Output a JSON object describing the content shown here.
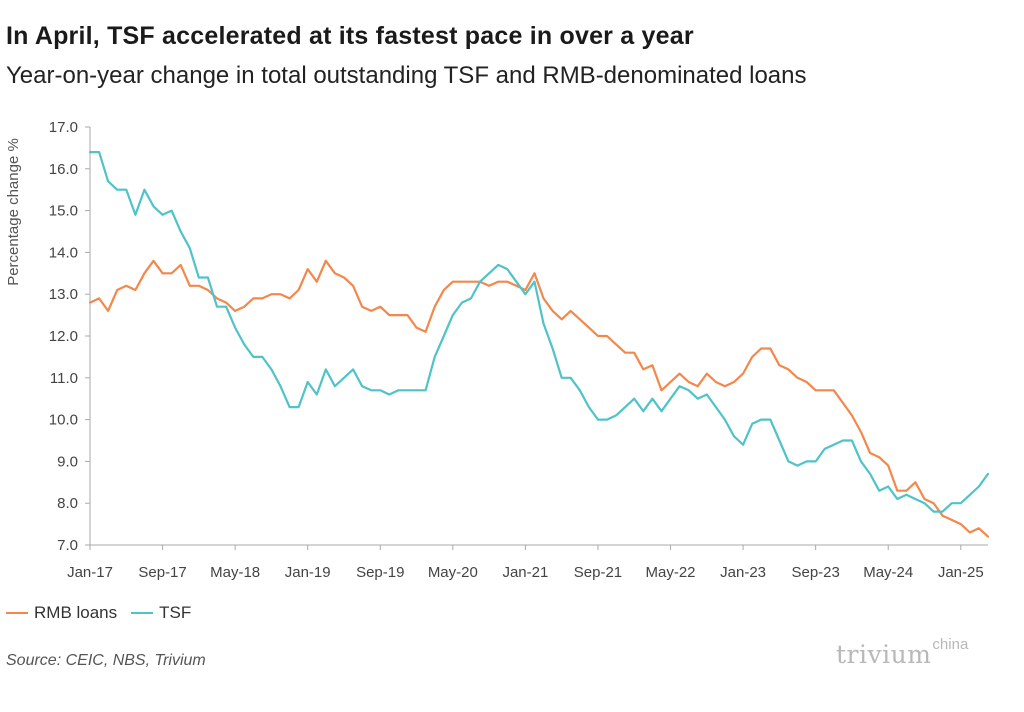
{
  "title": "In April, TSF accelerated at its fastest pace in over a year",
  "subtitle": "Year-on-year change in total outstanding TSF and RMB-denominated loans",
  "source": "Source: CEIC, NBS, Trivium",
  "brand": {
    "main": "trivium",
    "sup": "china"
  },
  "chart_data": {
    "type": "line",
    "ylabel": "Percentage change %",
    "xlabel": "",
    "ylim": [
      7.0,
      17.0
    ],
    "yticks": [
      "7.0",
      "8.0",
      "9.0",
      "10.0",
      "11.0",
      "12.0",
      "13.0",
      "14.0",
      "15.0",
      "16.0",
      "17.0"
    ],
    "xticks": [
      "Jan-17",
      "Sep-17",
      "May-18",
      "Jan-19",
      "Sep-19",
      "May-20",
      "Jan-21",
      "Sep-21",
      "May-22",
      "Jan-23",
      "Sep-23",
      "May-24",
      "Jan-25"
    ],
    "x_start": "Jan-17",
    "x_end": "Apr-25",
    "grid": false,
    "legend": "bottom-left",
    "series": [
      {
        "name": "RMB loans",
        "color": "#f4874b",
        "values": [
          12.8,
          12.9,
          12.6,
          13.1,
          13.2,
          13.1,
          13.5,
          13.8,
          13.5,
          13.5,
          13.7,
          13.2,
          13.2,
          13.1,
          12.9,
          12.8,
          12.6,
          12.7,
          12.9,
          12.9,
          13.0,
          13.0,
          12.9,
          13.1,
          13.6,
          13.3,
          13.8,
          13.5,
          13.4,
          13.2,
          12.7,
          12.6,
          12.7,
          12.5,
          12.5,
          12.5,
          12.2,
          12.1,
          12.7,
          13.1,
          13.3,
          13.3,
          13.3,
          13.3,
          13.2,
          13.3,
          13.3,
          13.2,
          13.1,
          13.5,
          12.9,
          12.6,
          12.4,
          12.6,
          12.4,
          12.2,
          12.0,
          12.0,
          11.8,
          11.6,
          11.6,
          11.2,
          11.3,
          10.7,
          10.9,
          11.1,
          10.9,
          10.8,
          11.1,
          10.9,
          10.8,
          10.9,
          11.1,
          11.5,
          11.7,
          11.7,
          11.3,
          11.2,
          11.0,
          10.9,
          10.7,
          10.7,
          10.7,
          10.4,
          10.1,
          9.7,
          9.2,
          9.1,
          8.9,
          8.3,
          8.3,
          8.5,
          8.1,
          8.0,
          7.7,
          7.6,
          7.5,
          7.3,
          7.4,
          7.2
        ]
      },
      {
        "name": "TSF",
        "color": "#4fc3c7",
        "values": [
          16.4,
          16.4,
          15.7,
          15.5,
          15.5,
          14.9,
          15.5,
          15.1,
          14.9,
          15.0,
          14.5,
          14.1,
          13.4,
          13.4,
          12.7,
          12.7,
          12.2,
          11.8,
          11.5,
          11.5,
          11.2,
          10.8,
          10.3,
          10.3,
          10.9,
          10.6,
          11.2,
          10.8,
          11.0,
          11.2,
          10.8,
          10.7,
          10.7,
          10.6,
          10.7,
          10.7,
          10.7,
          10.7,
          11.5,
          12.0,
          12.5,
          12.8,
          12.9,
          13.3,
          13.5,
          13.7,
          13.6,
          13.3,
          13.0,
          13.3,
          12.3,
          11.7,
          11.0,
          11.0,
          10.7,
          10.3,
          10.0,
          10.0,
          10.1,
          10.3,
          10.5,
          10.2,
          10.5,
          10.2,
          10.5,
          10.8,
          10.7,
          10.5,
          10.6,
          10.3,
          10.0,
          9.6,
          9.4,
          9.9,
          10.0,
          10.0,
          9.5,
          9.0,
          8.9,
          9.0,
          9.0,
          9.3,
          9.4,
          9.5,
          9.5,
          9.0,
          8.7,
          8.3,
          8.4,
          8.1,
          8.2,
          8.1,
          8.0,
          7.8,
          7.8,
          8.0,
          8.0,
          8.2,
          8.4,
          8.7
        ]
      }
    ]
  }
}
